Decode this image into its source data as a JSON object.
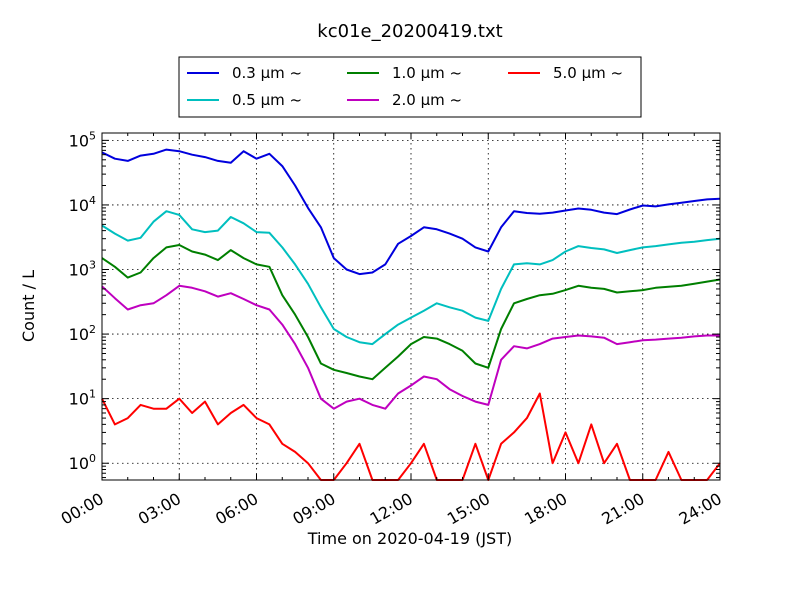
{
  "chart_data": {
    "type": "line",
    "title": "kc01e_20200419.txt",
    "xlabel": "Time on 2020-04-19 (JST)",
    "ylabel": "Count / L",
    "y_scale": "log",
    "xlim": [
      "00:00",
      "24:00"
    ],
    "ylim": [
      0.55,
      130000
    ],
    "grid": true,
    "legend_position": "top-center, above plot",
    "x_tick_labels": [
      "00:00",
      "03:00",
      "06:00",
      "09:00",
      "12:00",
      "15:00",
      "18:00",
      "21:00",
      "24:00"
    ],
    "y_tick_labels": [
      {
        "base": "10",
        "exp": "0",
        "value": 1
      },
      {
        "base": "10",
        "exp": "1",
        "value": 10
      },
      {
        "base": "10",
        "exp": "2",
        "value": 100
      },
      {
        "base": "10",
        "exp": "3",
        "value": 1000
      },
      {
        "base": "10",
        "exp": "4",
        "value": 10000
      },
      {
        "base": "10",
        "exp": "5",
        "value": 100000
      }
    ],
    "x_unit": "hours",
    "series": [
      {
        "name": "0.3 µm ~",
        "legend_text": "0.3 µm ~",
        "color": "#0000dd",
        "x": [
          0,
          0.5,
          1,
          1.5,
          2,
          2.5,
          3,
          3.5,
          4,
          4.5,
          5,
          5.5,
          6,
          6.5,
          7,
          7.5,
          8,
          8.5,
          9,
          9.5,
          10,
          10.5,
          11,
          11.5,
          12,
          12.5,
          13,
          13.5,
          14,
          14.5,
          15,
          15.5,
          16,
          16.5,
          17,
          17.5,
          18,
          18.5,
          19,
          19.5,
          20,
          20.5,
          21,
          21.5,
          22,
          22.5,
          23,
          23.5,
          24
        ],
        "values": [
          65000,
          52000,
          48000,
          58000,
          62000,
          72000,
          68000,
          60000,
          55000,
          48000,
          45000,
          68000,
          52000,
          62000,
          40000,
          20000,
          9000,
          4500,
          1500,
          1000,
          850,
          900,
          1200,
          2500,
          3300,
          4500,
          4200,
          3600,
          3000,
          2200,
          1900,
          4500,
          8000,
          7500,
          7300,
          7600,
          8200,
          8800,
          8400,
          7600,
          7200,
          8500,
          9800,
          9500,
          10200,
          10800,
          11500,
          12200,
          12500
        ]
      },
      {
        "name": "0.5 µm ~",
        "legend_text": "0.5 µm ~",
        "color": "#00bfbf",
        "x": [
          0,
          0.5,
          1,
          1.5,
          2,
          2.5,
          3,
          3.5,
          4,
          4.5,
          5,
          5.5,
          6,
          6.5,
          7,
          7.5,
          8,
          8.5,
          9,
          9.5,
          10,
          10.5,
          11,
          11.5,
          12,
          12.5,
          13,
          13.5,
          14,
          14.5,
          15,
          15.5,
          16,
          16.5,
          17,
          17.5,
          18,
          18.5,
          19,
          19.5,
          20,
          20.5,
          21,
          21.5,
          22,
          22.5,
          23,
          23.5,
          24
        ],
        "values": [
          4800,
          3600,
          2800,
          3100,
          5500,
          8000,
          7000,
          4200,
          3800,
          4000,
          6500,
          5200,
          3800,
          3700,
          2200,
          1200,
          600,
          260,
          120,
          90,
          75,
          70,
          100,
          140,
          180,
          230,
          300,
          260,
          230,
          180,
          160,
          500,
          1200,
          1250,
          1200,
          1400,
          1900,
          2300,
          2150,
          2050,
          1800,
          2000,
          2200,
          2300,
          2450,
          2600,
          2700,
          2850,
          3000
        ]
      },
      {
        "name": "1.0 µm ~",
        "legend_text": "1.0 µm ~",
        "color": "#007f00",
        "x": [
          0,
          0.5,
          1,
          1.5,
          2,
          2.5,
          3,
          3.5,
          4,
          4.5,
          5,
          5.5,
          6,
          6.5,
          7,
          7.5,
          8,
          8.5,
          9,
          9.5,
          10,
          10.5,
          11,
          11.5,
          12,
          12.5,
          13,
          13.5,
          14,
          14.5,
          15,
          15.5,
          16,
          16.5,
          17,
          17.5,
          18,
          18.5,
          19,
          19.5,
          20,
          20.5,
          21,
          21.5,
          22,
          22.5,
          23,
          23.5,
          24
        ],
        "values": [
          1500,
          1100,
          750,
          900,
          1500,
          2200,
          2400,
          1900,
          1700,
          1400,
          2000,
          1500,
          1200,
          1100,
          400,
          200,
          90,
          35,
          28,
          25,
          22,
          20,
          30,
          45,
          70,
          90,
          85,
          70,
          55,
          35,
          30,
          120,
          300,
          350,
          400,
          420,
          480,
          560,
          520,
          500,
          440,
          460,
          480,
          520,
          540,
          560,
          600,
          650,
          700
        ]
      },
      {
        "name": "2.0 µm ~",
        "legend_text": "2.0 µm ~",
        "color": "#bf00bf",
        "x": [
          0,
          0.5,
          1,
          1.5,
          2,
          2.5,
          3,
          3.5,
          4,
          4.5,
          5,
          5.5,
          6,
          6.5,
          7,
          7.5,
          8,
          8.5,
          9,
          9.5,
          10,
          10.5,
          11,
          11.5,
          12,
          12.5,
          13,
          13.5,
          14,
          14.5,
          15,
          15.5,
          16,
          16.5,
          17,
          17.5,
          18,
          18.5,
          19,
          19.5,
          20,
          20.5,
          21,
          21.5,
          22,
          22.5,
          23,
          23.5,
          24
        ],
        "values": [
          550,
          360,
          240,
          280,
          300,
          400,
          560,
          520,
          460,
          380,
          430,
          350,
          280,
          240,
          140,
          70,
          30,
          10,
          7,
          9,
          10,
          8,
          7,
          12,
          16,
          22,
          20,
          14,
          11,
          9,
          8,
          40,
          65,
          60,
          70,
          85,
          90,
          95,
          92,
          88,
          70,
          75,
          80,
          82,
          85,
          88,
          92,
          95,
          95
        ]
      },
      {
        "name": "5.0 µm ~",
        "legend_text": "5.0 µm ~",
        "color": "#ff0000",
        "x": [
          0,
          0.5,
          1,
          1.5,
          2,
          2.5,
          3,
          3.5,
          4,
          4.5,
          5,
          5.5,
          6,
          6.5,
          7,
          7.5,
          8,
          8.5,
          9,
          9.5,
          10,
          10.5,
          11,
          11.5,
          12,
          12.5,
          13,
          13.5,
          14,
          14.5,
          15,
          15.5,
          16,
          16.5,
          17,
          17.5,
          18,
          18.5,
          19,
          19.5,
          20,
          20.5,
          21,
          21.5,
          22,
          22.5,
          23,
          23.5,
          24
        ],
        "values": [
          10,
          4,
          5,
          8,
          7,
          7,
          10,
          6,
          9,
          4,
          6,
          8,
          5,
          4,
          2,
          1.5,
          1,
          0.55,
          0.55,
          1,
          2,
          0.55,
          0.55,
          0.55,
          1,
          2,
          0.55,
          0.55,
          0.55,
          2,
          0.55,
          2,
          3,
          5,
          12,
          1,
          3,
          1,
          4,
          1,
          2,
          0.55,
          0.55,
          0.55,
          1.5,
          0.55,
          0.55,
          0.55,
          1
        ]
      }
    ]
  },
  "legend_columns": [
    [
      "0.3 µm ~",
      "0.5 µm ~"
    ],
    [
      "1.0 µm ~",
      "2.0 µm ~"
    ],
    [
      "5.0 µm ~"
    ]
  ]
}
